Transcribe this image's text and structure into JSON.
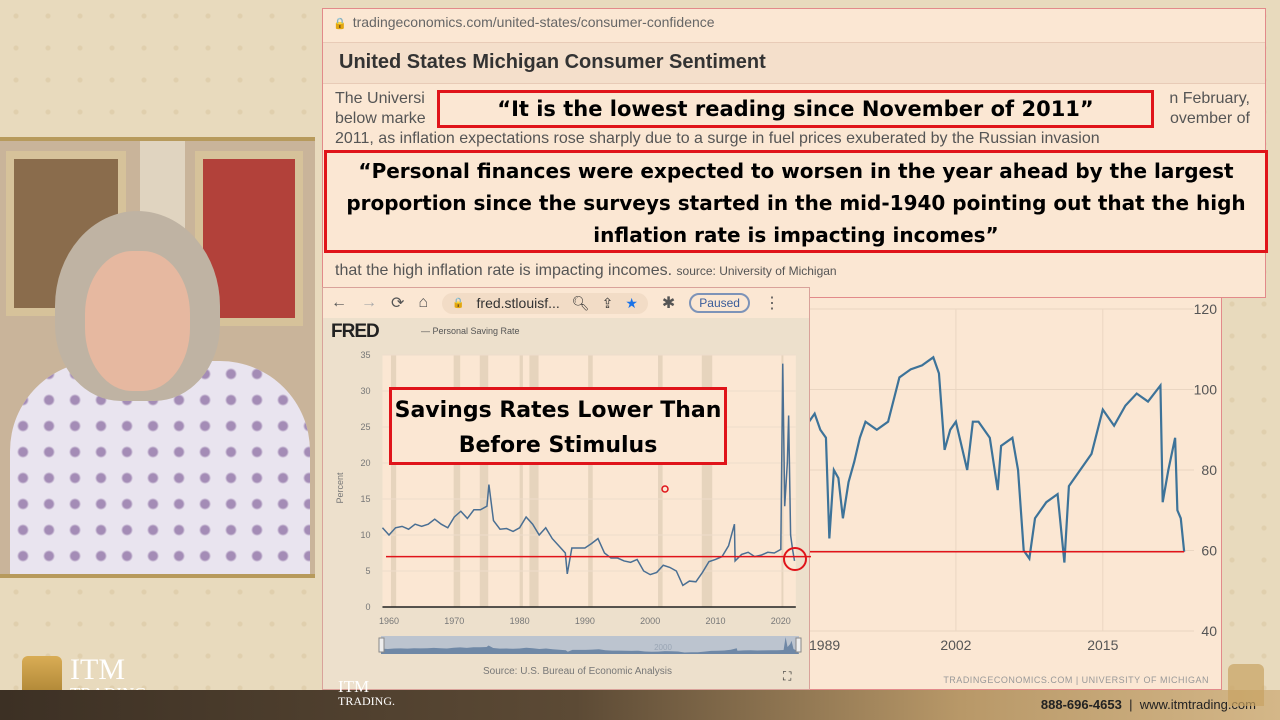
{
  "overlay_quotes": {
    "quote1": "“It is the lowest reading since November of 2011”",
    "quote2": "“Personal finances were expected to worsen in the year ahead by the largest proportion since the surveys started in the mid-1940 pointing out that the high inflation rate is impacting incomes”",
    "quote3_line1": "Savings Rates Lower Than",
    "quote3_line2": "Before Stimulus"
  },
  "tradingeconomics": {
    "url": "tradingeconomics.com/united-states/consumer-confidence",
    "title": "United States Michigan Consumer Sentiment",
    "paragraph_line1_left": "The Universi",
    "paragraph_line1_right": "n February,",
    "paragraph_line2_left": "below marke",
    "paragraph_line2_right": "ovember of",
    "paragraph_line3": "2011, as inflation expectations rose sharply due to a surge in fuel prices exuberated by the Russian invasion",
    "paragraph_last": "that the high inflation rate is impacting incomes.",
    "source": "source: University of Michigan",
    "footer": "TRADINGECONOMICS.COM  |  UNIVERSITY OF MICHIGAN"
  },
  "fred_browser": {
    "url": "fred.stlouisf...",
    "profile_status": "Paused",
    "logo": "FRED",
    "legend": "— Personal Saving Rate",
    "source": "Source: U.S. Bureau of Economic Analysis",
    "slider_label": "2000"
  },
  "footer": {
    "phone": "888-696-4653",
    "website": "www.itmtrading.com",
    "logo_text": "ITM",
    "logo_sub": "TRADING."
  },
  "colors": {
    "line": "#4a6f93",
    "highlight": "#e0141a",
    "te_line": "#3d7399"
  },
  "chart_data": [
    {
      "type": "line",
      "title": "Personal Saving Rate",
      "ylabel": "Percent",
      "xlabel": "",
      "ylim": [
        0,
        35
      ],
      "xlim": [
        1959,
        2022.3
      ],
      "yticks": [
        0,
        5,
        10,
        15,
        20,
        25,
        30,
        35
      ],
      "xticks": [
        1960,
        1970,
        1980,
        1990,
        2000,
        2010,
        2020
      ],
      "grid": true,
      "reference_line": 7,
      "series": [
        {
          "x": [
            1959,
            1960,
            1961,
            1962,
            1963,
            1964,
            1965,
            1966,
            1967,
            1968,
            1969,
            1970,
            1971,
            1972,
            1973,
            1974,
            1975,
            1975.3,
            1976,
            1977,
            1978,
            1979,
            1980,
            1981,
            1982,
            1983,
            1984,
            1985,
            1986,
            1987,
            1987.3,
            1988,
            1989,
            1990,
            1991,
            1992,
            1993,
            1994,
            1995,
            1996,
            1997,
            1998,
            1999,
            2000,
            2001,
            2002,
            2003,
            2004,
            2005,
            2006,
            2007,
            2008,
            2009,
            2010,
            2011,
            2012,
            2012.9,
            2013,
            2014,
            2015,
            2016,
            2017,
            2018,
            2019,
            2020.0,
            2020.3,
            2020.6,
            2021.0,
            2021.2,
            2021.5,
            2021.8,
            2022.1
          ],
          "y": [
            11,
            10,
            11,
            11.2,
            10.8,
            11.5,
            11.2,
            11.5,
            12.2,
            11.5,
            11,
            12.5,
            13.3,
            12.3,
            13.5,
            13.5,
            14,
            17,
            12,
            10.8,
            10.9,
            10.5,
            11,
            12.5,
            11.5,
            10,
            11,
            9.5,
            8.5,
            7.5,
            4.6,
            8.2,
            8.2,
            8.2,
            8.8,
            9.5,
            7.5,
            6.8,
            6.8,
            6.4,
            6.2,
            6.6,
            5.0,
            4.5,
            4.8,
            5.8,
            5.5,
            5.0,
            3.0,
            3.6,
            3.5,
            4.8,
            6.3,
            6.6,
            7.0,
            8.5,
            11.5,
            6.4,
            7.3,
            7.6,
            7.0,
            7.2,
            7.6,
            7.5,
            8,
            33.8,
            14,
            20,
            26.6,
            10,
            8,
            6.4
          ]
        }
      ]
    },
    {
      "type": "line",
      "title": "United States Michigan Consumer Sentiment",
      "ylim": [
        40,
        120
      ],
      "yticks": [
        40,
        60,
        80,
        100,
        120
      ],
      "xticks": [
        1989,
        2002,
        2015
      ],
      "grid": true,
      "reference_line": 59.7,
      "series": [
        {
          "x": [
            1989,
            1989.5,
            1990,
            1990.5,
            1990.8,
            1991.2,
            1991.6,
            1992,
            1992.5,
            1993,
            1993.5,
            1994,
            1995,
            1996,
            1997,
            1997.5,
            1998,
            1999,
            2000,
            2000.5,
            2001,
            2001.5,
            2002,
            2002.5,
            2003,
            2003.5,
            2004,
            2005,
            2005.7,
            2006,
            2007,
            2007.5,
            2008,
            2008.5,
            2009,
            2010,
            2011,
            2011.6,
            2012,
            2013,
            2014,
            2015,
            2016,
            2017,
            2018,
            2019,
            2020.1,
            2020.3,
            2020.8,
            2021.4,
            2021.6,
            2021.9,
            2022.2
          ],
          "y": [
            92,
            94,
            90,
            88,
            63,
            80,
            78,
            68,
            77,
            82,
            88,
            92,
            90,
            92,
            103,
            104,
            105,
            106,
            108,
            104,
            85,
            90,
            92,
            86,
            80,
            92,
            92,
            88,
            75,
            86,
            88,
            80,
            60,
            58,
            68,
            72,
            74,
            57,
            76,
            80,
            84,
            95,
            91,
            96,
            99,
            97,
            101,
            72,
            80,
            88,
            70,
            68,
            59.7
          ]
        }
      ]
    }
  ]
}
